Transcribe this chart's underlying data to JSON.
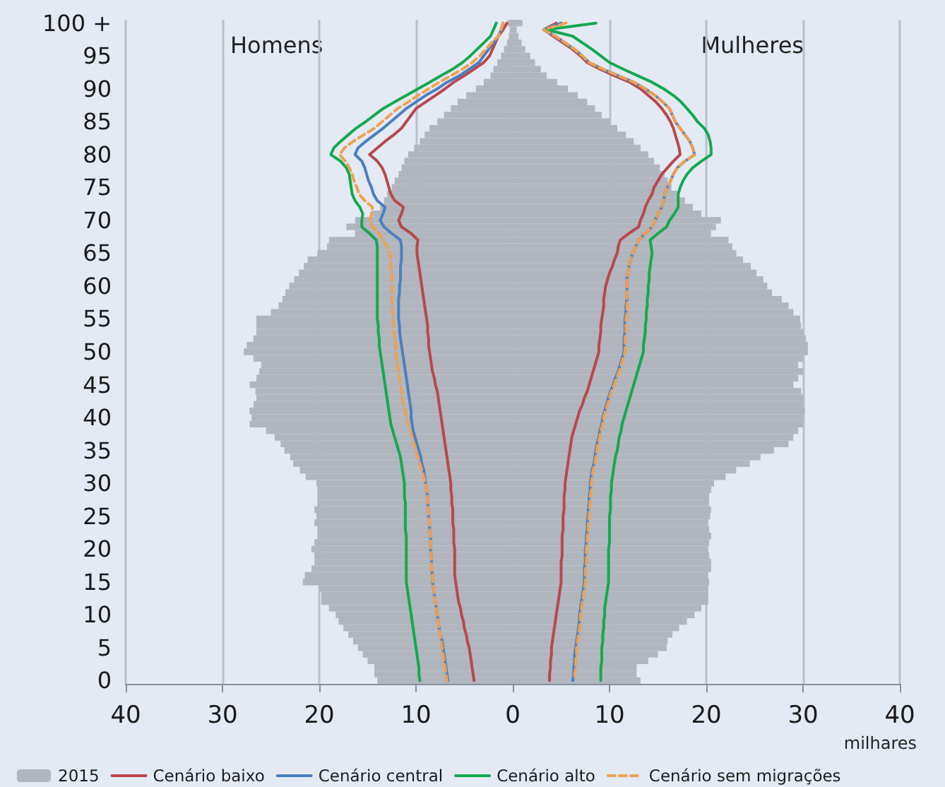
{
  "chart_data": {
    "type": "bar",
    "orientation": "horizontal",
    "categories": [
      "100 +",
      null,
      null,
      null,
      null,
      "95",
      null,
      null,
      null,
      null,
      "90",
      null,
      null,
      null,
      null,
      "85",
      null,
      null,
      null,
      null,
      "80",
      null,
      null,
      null,
      null,
      "75",
      null,
      null,
      null,
      null,
      "70",
      null,
      null,
      null,
      null,
      "65",
      null,
      null,
      null,
      null,
      "60",
      null,
      null,
      null,
      null,
      "55",
      null,
      null,
      null,
      null,
      "50",
      null,
      null,
      null,
      null,
      "45",
      null,
      null,
      null,
      null,
      "40",
      null,
      null,
      null,
      null,
      "35",
      null,
      null,
      null,
      null,
      "30",
      null,
      null,
      null,
      null,
      "25",
      null,
      null,
      null,
      null,
      "20",
      null,
      null,
      null,
      null,
      "15",
      null,
      null,
      null,
      null,
      "10",
      null,
      null,
      null,
      null,
      "5",
      null,
      null,
      null,
      null,
      "0"
    ],
    "xlabel": "milhares",
    "annotations": [
      "Homens",
      "Mulheres"
    ],
    "xlim": [
      -40,
      40
    ],
    "xticks": [
      {
        "value": -40,
        "label": "40"
      },
      {
        "value": -30,
        "label": "30"
      },
      {
        "value": -20,
        "label": "20"
      },
      {
        "value": -10,
        "label": "10"
      },
      0,
      10,
      20,
      30,
      40
    ],
    "grid": "x",
    "legend": "bottom",
    "marker": "none",
    "stacked": true,
    "series": [
      {
        "name": "2015",
        "color": "#b0b5be",
        "values": [
          -0.5,
          -0.3,
          -0.4,
          -0.6,
          -0.9,
          -1.2,
          -1.6,
          -2.0,
          -2.3,
          -3.0,
          -3.8,
          -4.8,
          -5.7,
          -6.4,
          -7.1,
          -7.8,
          -8.6,
          -9.1,
          -9.6,
          -10.2,
          -10.8,
          -11.2,
          -11.5,
          -11.8,
          -12.2,
          -12.5,
          -13.0,
          -13.3,
          -13.7,
          -14.5,
          -16.3,
          -17.2,
          -16.3,
          -19.0,
          -19.2,
          -20.2,
          -21.2,
          -21.6,
          -22.1,
          -22.6,
          -23.1,
          -23.5,
          -23.8,
          -24.2,
          -25.0,
          -26.5,
          -26.5,
          -26.5,
          -26.8,
          -27.5,
          -27.8,
          -26.8,
          -26.0,
          -26.2,
          -26.5,
          -27.2,
          -26.6,
          -26.5,
          -26.8,
          -27.2,
          -27.0,
          -27.2,
          -25.5,
          -24.6,
          -24.0,
          -23.6,
          -23.0,
          -22.7,
          -22.0,
          -21.4,
          -20.3,
          -20.2,
          -20.2,
          -20.2,
          -20.5,
          -20.3,
          -20.5,
          -20.2,
          -20.2,
          -20.5,
          -20.8,
          -20.5,
          -20.5,
          -20.8,
          -21.5,
          -21.7,
          -20.0,
          -19.8,
          -19.8,
          -19.0,
          -18.3,
          -18.0,
          -17.5,
          -17.0,
          -16.5,
          -16.0,
          -15.5,
          -15.0,
          -14.3,
          -14.3,
          -14.0
        ]
      },
      {
        "color": "#b0b5be",
        "values": [
          1.0,
          0.4,
          0.6,
          0.9,
          1.3,
          1.8,
          2.3,
          2.9,
          3.5,
          4.6,
          5.7,
          6.7,
          7.7,
          8.5,
          9.2,
          10.0,
          10.8,
          11.7,
          12.5,
          13.2,
          14.0,
          14.6,
          15.2,
          15.7,
          16.0,
          16.4,
          17.0,
          17.8,
          18.6,
          19.5,
          21.5,
          21.0,
          20.5,
          22.3,
          22.7,
          23.1,
          23.8,
          24.6,
          25.2,
          25.9,
          26.3,
          26.8,
          27.8,
          28.5,
          29.0,
          29.7,
          29.8,
          30.0,
          30.3,
          30.5,
          30.5,
          30.0,
          29.5,
          30.0,
          29.5,
          29.0,
          29.8,
          30.0,
          30.0,
          30.2,
          30.0,
          30.0,
          29.5,
          29.0,
          28.5,
          27.0,
          25.6,
          24.5,
          23.1,
          22.0,
          20.8,
          20.5,
          20.3,
          20.3,
          20.5,
          20.4,
          20.2,
          20.3,
          20.5,
          20.3,
          20.2,
          20.3,
          20.5,
          20.5,
          20.2,
          20.3,
          20.2,
          20.2,
          20.2,
          19.5,
          18.8,
          18.0,
          17.2,
          16.5,
          16.0,
          15.9,
          15.0,
          14.0,
          12.8,
          12.8,
          13.2
        ]
      },
      {
        "name": "Cenário baixo",
        "type": "line",
        "color": "#b9484d",
        "line_style": "solid",
        "values": [
          -0.6,
          -1.0,
          -1.5,
          -1.8,
          -2.1,
          -2.4,
          -3.0,
          -4.0,
          -5.0,
          -6.1,
          -7.0,
          -8.0,
          -9.0,
          -10.0,
          -10.5,
          -11.0,
          -11.5,
          -12.3,
          -13.2,
          -14.0,
          -14.8,
          -14.0,
          -13.5,
          -13.2,
          -13.0,
          -12.8,
          -12.6,
          -12.2,
          -11.3,
          -11.5,
          -11.8,
          -11.5,
          -10.5,
          -9.8,
          -9.9,
          -9.9,
          -9.8,
          -9.7,
          -9.6,
          -9.5,
          -9.4,
          -9.3,
          -9.2,
          -9.1,
          -9.0,
          -8.9,
          -8.8,
          -8.8,
          -8.7,
          -8.7,
          -8.6,
          -8.5,
          -8.4,
          -8.3,
          -8.1,
          -8.0,
          -7.8,
          -7.7,
          -7.6,
          -7.5,
          -7.4,
          -7.3,
          -7.2,
          -7.1,
          -7.0,
          -6.9,
          -6.8,
          -6.7,
          -6.6,
          -6.5,
          -6.4,
          -6.4,
          -6.3,
          -6.3,
          -6.2,
          -6.2,
          -6.2,
          -6.1,
          -6.1,
          -6.1,
          -6.0,
          -6.0,
          -6.0,
          -6.0,
          -6.0,
          -5.9,
          -5.8,
          -5.7,
          -5.6,
          -5.4,
          -5.3,
          -5.1,
          -5.0,
          -4.8,
          -4.7,
          -4.5,
          -4.4,
          -4.3,
          -4.2,
          -4.1,
          -4.0
        ]
      },
      {
        "name": "Cenário central",
        "type": "line",
        "color": "#4a7fc1",
        "line_style": "solid",
        "values": [
          -1.0,
          -1.2,
          -1.5,
          -2.0,
          -2.5,
          -3.0,
          -3.5,
          -4.5,
          -5.5,
          -6.8,
          -7.8,
          -9.0,
          -10.0,
          -11.0,
          -11.8,
          -12.6,
          -13.4,
          -14.3,
          -15.2,
          -16.0,
          -16.3,
          -15.6,
          -15.3,
          -15.1,
          -14.9,
          -14.6,
          -14.4,
          -14.0,
          -13.2,
          -13.4,
          -13.7,
          -13.3,
          -12.5,
          -11.6,
          -11.5,
          -11.5,
          -11.5,
          -11.6,
          -11.6,
          -11.6,
          -11.7,
          -11.7,
          -11.8,
          -11.8,
          -11.8,
          -11.8,
          -11.7,
          -11.7,
          -11.6,
          -11.5,
          -11.4,
          -11.3,
          -11.2,
          -11.1,
          -11.0,
          -10.9,
          -10.8,
          -10.7,
          -10.6,
          -10.5,
          -10.5,
          -10.4,
          -10.3,
          -10.1,
          -9.9,
          -9.7,
          -9.5,
          -9.4,
          -9.2,
          -9.1,
          -9.0,
          -8.9,
          -8.8,
          -8.8,
          -8.7,
          -8.7,
          -8.6,
          -8.6,
          -8.5,
          -8.5,
          -8.5,
          -8.4,
          -8.4,
          -8.4,
          -8.3,
          -8.3,
          -8.2,
          -8.1,
          -8.0,
          -7.9,
          -7.8,
          -7.7,
          -7.6,
          -7.5,
          -7.3,
          -7.2,
          -7.1,
          -7.0,
          -6.9,
          -6.8,
          -6.7
        ]
      },
      {
        "name": "Cenário alto",
        "type": "line",
        "color": "#13a94f",
        "line_style": "solid",
        "values": [
          -1.7,
          -2.0,
          -2.3,
          -3.0,
          -3.7,
          -4.4,
          -5.2,
          -6.2,
          -7.4,
          -8.6,
          -9.8,
          -11.0,
          -12.2,
          -13.4,
          -14.3,
          -15.2,
          -16.2,
          -17.0,
          -17.8,
          -18.5,
          -18.8,
          -17.8,
          -17.2,
          -16.9,
          -16.8,
          -16.7,
          -16.6,
          -16.3,
          -15.8,
          -15.5,
          -15.6,
          -15.6,
          -14.8,
          -14.1,
          -14.0,
          -14.0,
          -14.0,
          -14.0,
          -14.0,
          -14.0,
          -14.0,
          -14.0,
          -14.0,
          -14.0,
          -14.0,
          -14.0,
          -13.9,
          -13.9,
          -13.8,
          -13.8,
          -13.7,
          -13.6,
          -13.5,
          -13.4,
          -13.3,
          -13.2,
          -13.1,
          -13.0,
          -12.9,
          -12.8,
          -12.7,
          -12.6,
          -12.4,
          -12.2,
          -12.0,
          -11.8,
          -11.6,
          -11.5,
          -11.4,
          -11.3,
          -11.2,
          -11.2,
          -11.2,
          -11.1,
          -11.1,
          -11.1,
          -11.1,
          -11.1,
          -11.0,
          -11.0,
          -11.0,
          -11.0,
          -11.0,
          -11.0,
          -11.0,
          -11.0,
          -10.9,
          -10.8,
          -10.7,
          -10.6,
          -10.5,
          -10.4,
          -10.3,
          -10.2,
          -10.1,
          -10.0,
          -9.9,
          -9.8,
          -9.7,
          -9.7,
          -9.6
        ]
      },
      {
        "name": "Cenário sem migrações",
        "type": "line",
        "color": "#f0a050",
        "line_style": "dashed",
        "values": [
          -1.0,
          -1.2,
          -1.5,
          -2.2,
          -2.8,
          -3.4,
          -4.2,
          -5.2,
          -6.4,
          -7.6,
          -8.7,
          -9.8,
          -10.8,
          -11.9,
          -12.7,
          -13.5,
          -14.3,
          -15.4,
          -16.5,
          -17.4,
          -17.9,
          -17.3,
          -16.9,
          -16.6,
          -16.4,
          -16.1,
          -15.9,
          -15.3,
          -14.5,
          -14.6,
          -14.8,
          -14.5,
          -13.8,
          -13.4,
          -13.0,
          -12.7,
          -12.6,
          -12.6,
          -12.5,
          -12.5,
          -12.5,
          -12.5,
          -12.5,
          -12.5,
          -12.4,
          -12.4,
          -12.3,
          -12.3,
          -12.2,
          -12.1,
          -12.1,
          -12.0,
          -11.9,
          -11.8,
          -11.7,
          -11.6,
          -11.5,
          -11.4,
          -11.3,
          -11.1,
          -11.0,
          -10.8,
          -10.6,
          -10.4,
          -10.2,
          -10.0,
          -9.8,
          -9.6,
          -9.4,
          -9.2,
          -9.0,
          -8.9,
          -8.8,
          -8.8,
          -8.7,
          -8.7,
          -8.6,
          -8.6,
          -8.5,
          -8.5,
          -8.5,
          -8.4,
          -8.4,
          -8.4,
          -8.3,
          -8.3,
          -8.2,
          -8.1,
          -8.0,
          -7.9,
          -7.8,
          -7.7,
          -7.6,
          -7.5,
          -7.4,
          -7.3,
          -7.2,
          -7.1,
          -7.0,
          -6.9,
          -6.8
        ]
      },
      {
        "type": "line",
        "color": "#b9484d",
        "line_style": "solid",
        "values": [
          4.5,
          3.2,
          4.2,
          5.2,
          6.2,
          7.0,
          7.7,
          9.0,
          10.5,
          12.1,
          13.2,
          14.0,
          14.8,
          15.4,
          15.9,
          16.3,
          16.6,
          16.8,
          17.0,
          17.2,
          17.3,
          16.6,
          16.0,
          15.4,
          15.0,
          14.6,
          14.4,
          14.0,
          13.7,
          13.5,
          13.2,
          13.0,
          12.0,
          11.1,
          10.9,
          10.8,
          10.5,
          10.3,
          10.0,
          9.8,
          9.6,
          9.5,
          9.4,
          9.4,
          9.3,
          9.2,
          9.1,
          9.1,
          9.0,
          8.9,
          8.9,
          8.7,
          8.5,
          8.3,
          8.1,
          7.9,
          7.7,
          7.4,
          7.2,
          6.9,
          6.7,
          6.5,
          6.3,
          6.1,
          6.0,
          5.9,
          5.8,
          5.7,
          5.6,
          5.5,
          5.4,
          5.4,
          5.3,
          5.3,
          5.3,
          5.2,
          5.2,
          5.2,
          5.1,
          5.1,
          5.1,
          5.1,
          5.0,
          5.0,
          5.0,
          5.0,
          4.9,
          4.8,
          4.7,
          4.6,
          4.5,
          4.4,
          4.3,
          4.2,
          4.1,
          4.0,
          4.0,
          3.9,
          3.9,
          3.8,
          3.8
        ]
      },
      {
        "type": "line",
        "color": "#4a7fc1",
        "line_style": "solid",
        "values": [
          5.0,
          3.2,
          4.4,
          5.4,
          6.4,
          7.2,
          7.9,
          9.3,
          10.9,
          12.5,
          13.7,
          14.7,
          15.5,
          16.2,
          16.5,
          16.8,
          17.3,
          17.8,
          18.3,
          18.6,
          18.8,
          17.8,
          17.0,
          16.6,
          16.3,
          16.0,
          15.7,
          15.6,
          15.4,
          15.0,
          14.7,
          14.4,
          13.7,
          13.0,
          12.7,
          12.4,
          12.2,
          12.0,
          11.9,
          11.8,
          11.8,
          11.8,
          11.8,
          11.7,
          11.7,
          11.6,
          11.6,
          11.6,
          11.5,
          11.5,
          11.5,
          11.3,
          11.1,
          10.9,
          10.6,
          10.4,
          10.1,
          9.9,
          9.7,
          9.5,
          9.3,
          9.2,
          9.0,
          8.9,
          8.7,
          8.6,
          8.5,
          8.4,
          8.2,
          8.1,
          8.0,
          8.0,
          7.9,
          7.9,
          7.8,
          7.8,
          7.7,
          7.7,
          7.6,
          7.6,
          7.5,
          7.5,
          7.5,
          7.4,
          7.4,
          7.4,
          7.3,
          7.2,
          7.1,
          7.0,
          6.9,
          6.9,
          6.8,
          6.7,
          6.6,
          6.5,
          6.4,
          6.4,
          6.3,
          6.3,
          6.2
        ]
      },
      {
        "type": "line",
        "color": "#13a94f",
        "line_style": "solid",
        "values": [
          8.6,
          3.5,
          6.2,
          7.2,
          8.2,
          9.1,
          10.0,
          11.4,
          12.9,
          14.4,
          15.6,
          16.6,
          17.4,
          18.0,
          18.6,
          19.1,
          19.8,
          20.2,
          20.4,
          20.5,
          20.5,
          19.5,
          18.6,
          18.0,
          17.6,
          17.3,
          17.1,
          17.1,
          17.1,
          16.7,
          16.2,
          15.9,
          15.0,
          14.2,
          14.3,
          14.4,
          14.3,
          14.2,
          14.1,
          14.1,
          14.0,
          14.0,
          13.9,
          13.9,
          13.8,
          13.8,
          13.7,
          13.7,
          13.6,
          13.5,
          13.5,
          13.3,
          13.1,
          12.9,
          12.7,
          12.5,
          12.3,
          12.1,
          11.9,
          11.7,
          11.5,
          11.3,
          11.2,
          11.0,
          10.9,
          10.8,
          10.6,
          10.5,
          10.4,
          10.3,
          10.2,
          10.2,
          10.1,
          10.1,
          10.1,
          10.0,
          10.0,
          10.0,
          10.0,
          10.0,
          9.9,
          9.9,
          9.9,
          9.9,
          9.9,
          9.9,
          9.8,
          9.7,
          9.6,
          9.5,
          9.5,
          9.4,
          9.4,
          9.3,
          9.3,
          9.2,
          9.2,
          9.2,
          9.1,
          9.1,
          9.1
        ]
      },
      {
        "type": "line",
        "color": "#f0a050",
        "line_style": "dashed",
        "values": [
          5.5,
          3.2,
          4.4,
          5.4,
          6.4,
          7.2,
          7.9,
          9.3,
          10.9,
          12.5,
          13.7,
          14.7,
          15.5,
          16.2,
          16.5,
          16.8,
          17.3,
          17.8,
          18.3,
          18.6,
          18.8,
          17.8,
          17.0,
          16.6,
          16.3,
          16.0,
          15.7,
          15.6,
          15.4,
          15.0,
          14.7,
          14.4,
          13.7,
          13.0,
          12.7,
          12.4,
          12.2,
          12.0,
          11.9,
          11.8,
          11.8,
          11.8,
          11.8,
          11.8,
          11.8,
          11.7,
          11.7,
          11.7,
          11.6,
          11.6,
          11.6,
          11.4,
          11.2,
          11.0,
          10.7,
          10.5,
          10.2,
          10.0,
          9.8,
          9.6,
          9.4,
          9.3,
          9.1,
          9.0,
          8.8,
          8.7,
          8.6,
          8.5,
          8.3,
          8.2,
          8.1,
          8.1,
          8.0,
          8.0,
          7.9,
          7.9,
          7.8,
          7.8,
          7.7,
          7.7,
          7.6,
          7.6,
          7.6,
          7.5,
          7.5,
          7.5,
          7.4,
          7.3,
          7.2,
          7.1,
          7.0,
          7.0,
          6.9,
          6.8,
          6.7,
          6.6,
          6.6,
          6.5,
          6.5,
          6.4,
          6.4
        ]
      }
    ]
  }
}
